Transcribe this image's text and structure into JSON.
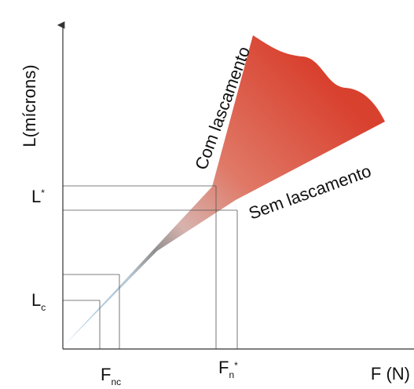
{
  "axes": {
    "y_label": "L(mícrons)",
    "x_label": "F (N)"
  },
  "y_marks": [
    {
      "main": "L",
      "sup": "*"
    },
    {
      "main": "L",
      "sub": "c"
    }
  ],
  "x_marks": [
    {
      "main": "F",
      "sub": "nc"
    },
    {
      "main": "F",
      "sub": "n",
      "sup": "*"
    }
  ],
  "regions": {
    "upper": "Com lascamento",
    "lower": "Sem lascamento"
  }
}
